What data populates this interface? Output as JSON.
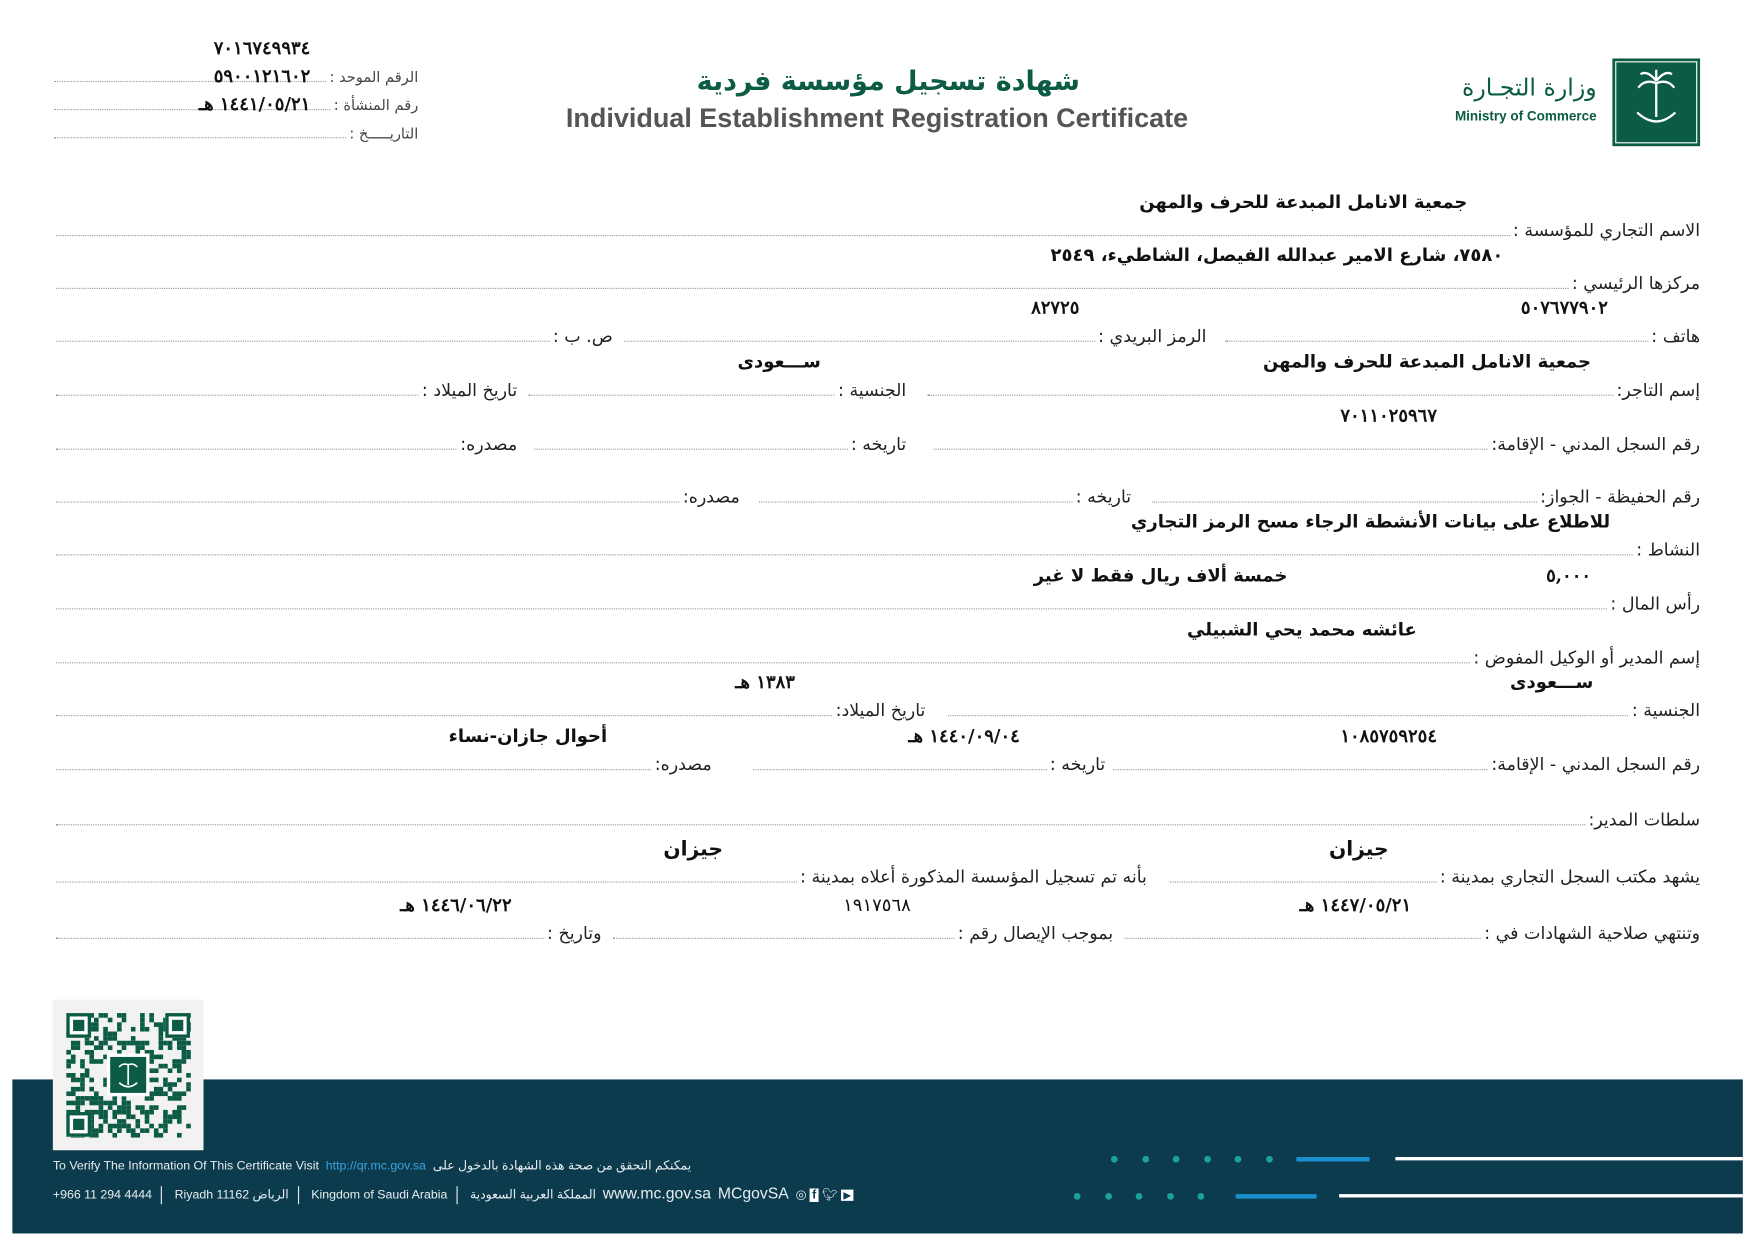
{
  "header": {
    "title_ar": "شهادة تسجيل مؤسسة فردية",
    "title_en": "Individual Establishment Registration Certificate",
    "ministry_ar": "وزارة التجـارة",
    "ministry_en": "Ministry of Commerce",
    "brand_color": "#0c5c45"
  },
  "top_info": {
    "unified_label": "الرقم الموحد :",
    "unified_value": "٧٠١٦٧٤٩٩٣٤",
    "establishment_label": "رقم المنشأة :",
    "establishment_value": "٥٩٠٠١٢١٦٠٢",
    "date_label": "التاريـــــخ :",
    "date_value": "١٤٤١/٠٥/٢١ هـ"
  },
  "fields": {
    "trade_name_label": "الاسم التجاري للمؤسسة :",
    "trade_name": "جمعية الانامل المبدعة للحرف والمهن",
    "hq_label": "مركزها الرئيسي :",
    "hq": "٧٥٨٠، شارع الامير عبدالله الفيصل، الشاطيء، ٢٥٤٩",
    "phone_label": "هاتف :",
    "phone": "٥٠٧٦٧٧٩٠٢",
    "postal_label": "الرمز البريدي :",
    "postal": "٨٢٧٢٥",
    "pobox_label": "ص. ب :",
    "merchant_label": "إسم التاجر:",
    "merchant": "جمعية الانامل المبدعة للحرف والمهن",
    "nationality_label": "الجنسية :",
    "nationality": "ســـعودى",
    "birth_label": "تاريخ الميلاد :",
    "civil_label": "رقم السجل المدني - الإقامة:",
    "civil": "٧٠١١٠٢٥٩٦٧",
    "civil_date_label": "تاريخه :",
    "civil_source_label": "مصدره:",
    "passport_label": "رقم الحفيظة - الجواز:",
    "passport_date_label": "تاريخه :",
    "passport_source_label": "مصدره:",
    "activity_label": "النشاط :",
    "activity": "للاطلاع على بيانات الأنشطة الرجاء مسح الرمز التجاري",
    "capital_label": "رأس المال :",
    "capital": "٥,٠٠٠",
    "capital_words": "خمسة ألاف  ريال  فقط لا غير",
    "manager_label": "إسم المدير أو الوكيل المفوض :",
    "manager": "عائشه محمد يحي الشبيلي",
    "mgr_nationality_label": "الجنسية :",
    "mgr_nationality": "ســـعودى",
    "mgr_birth_label": "تاريخ الميلاد:",
    "mgr_birth": "١٣٨٣ هـ",
    "mgr_civil_label": "رقم السجل المدني - الإقامة:",
    "mgr_civil": "١٠٨٥٧٥٩٢٥٤",
    "mgr_civil_date_label": "تاريخه :",
    "mgr_civil_date": "١٤٤٠/٠٩/٠٤ هـ",
    "mgr_source_label": "مصدره:",
    "mgr_source": "أحوال جازان-نساء",
    "powers_label": "سلطات المدير:",
    "office_city_label": "يشهد مكتب السجل التجاري بمدينة :",
    "office_city": "جيزان",
    "reg_city_label": "بأنه تم تسجيل المؤسسة المذكورة أعلاه بمدينة :",
    "reg_city": "جيزان",
    "expiry_label": "وتنتهي صلاحية الشهادات في :",
    "expiry": "١٤٤٧/٠٥/٢١ هـ",
    "receipt_label": "بموجب الإيصال رقم :",
    "receipt": "١٩١٧٥٦٨",
    "receipt_date_label": "وتاريخ :",
    "receipt_date": "١٤٤٦/٠٦/٢٢ هـ"
  },
  "footer": {
    "verify_en": "To Verify The Information Of This Certificate Visit",
    "verify_url": "http://qr.mc.gov.sa",
    "verify_ar": "يمكنكم التحقق من صحة هذه الشهادة بالدخول على",
    "phone": "+966 11 294 4444",
    "city": "Riyadh 11162 الرياض",
    "country_en": "Kingdom of Saudi Arabia",
    "country_ar": "المملكة العربية السعودية",
    "website": "www.mc.gov.sa",
    "handle": "MCgovSA",
    "band_color": "#0c3b4e",
    "accent_color": "#1aa398"
  }
}
